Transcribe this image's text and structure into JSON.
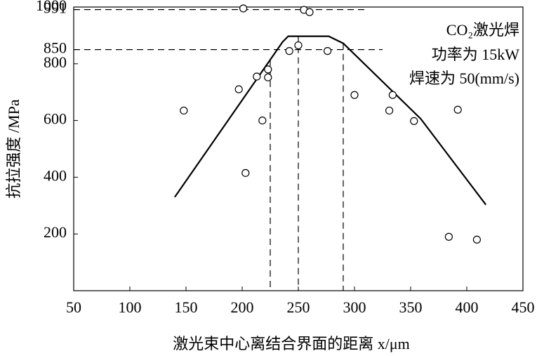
{
  "chart_data": {
    "type": "scatter",
    "x_label": "激光束中心离结合界面的距离 x/μm",
    "y_label": "抗拉强度 /MPa",
    "annotations": [
      "CO₂激光焊",
      "功率为 15kW",
      "焊速为 50(mm/s)"
    ],
    "xlim": [
      50,
      450
    ],
    "xticks": [
      50,
      100,
      150,
      200,
      250,
      300,
      350,
      400,
      450
    ],
    "ylim": [
      0,
      1000
    ],
    "yticks": [
      200,
      400,
      600,
      800,
      850,
      991,
      1000
    ],
    "color": "#000000",
    "x": [
      148,
      201,
      197,
      203,
      213,
      218,
      223,
      223,
      242,
      250,
      255,
      260,
      276,
      300,
      331,
      334,
      353,
      384,
      392,
      409
    ],
    "values": [
      635,
      995,
      710,
      415,
      755,
      600,
      780,
      752,
      845,
      865,
      990,
      982,
      845,
      690,
      635,
      690,
      598,
      190,
      638,
      180
    ],
    "fit": {
      "x": [
        140,
        236,
        241,
        277,
        290,
        359,
        417
      ],
      "values": [
        330,
        877,
        897,
        897,
        872,
        606,
        303
      ]
    },
    "dashed_y": [
      991,
      850
    ],
    "dashed_x": [
      225,
      250,
      290
    ]
  }
}
